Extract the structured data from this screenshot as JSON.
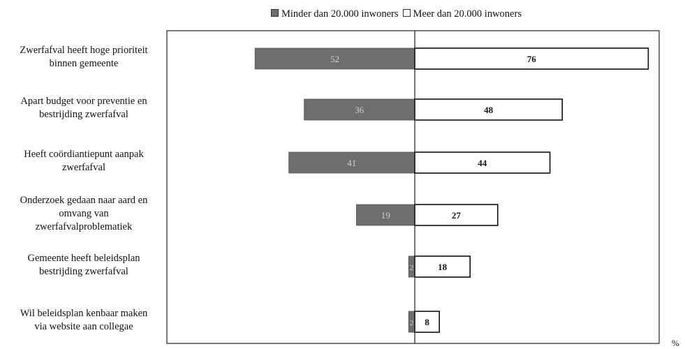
{
  "chart_data": {
    "type": "bar",
    "orientation": "horizontal-diverging",
    "categories": [
      "Zwerfafval heeft hoge prioriteit\nbinnen gemeente",
      "Apart budget voor preventie en\nbestrijding zwerfafval",
      "Heeft coördiantiepunt aanpak\nzwerfafval",
      "Onderzoek gedaan naar aard en\nomvang van\nzwerfafvalproblematiek",
      "Gemeente heeft beleidsplan\nbestrijding zwerfafval",
      "Wil beleidsplan kenbaar maken\nvia website aan collegae"
    ],
    "series": [
      {
        "name": "Minder dan 20.000 inwoners",
        "values": [
          52,
          36,
          41,
          19,
          2,
          2
        ],
        "color": "#6e6e6e",
        "direction": "left"
      },
      {
        "name": "Meer dan 20.000 inwoners",
        "values": [
          76,
          48,
          44,
          27,
          18,
          8
        ],
        "color": "#ffffff",
        "direction": "right"
      }
    ],
    "legend_position": "top",
    "unit_label": "%",
    "grid": false,
    "xlim": [
      -80,
      80
    ]
  }
}
